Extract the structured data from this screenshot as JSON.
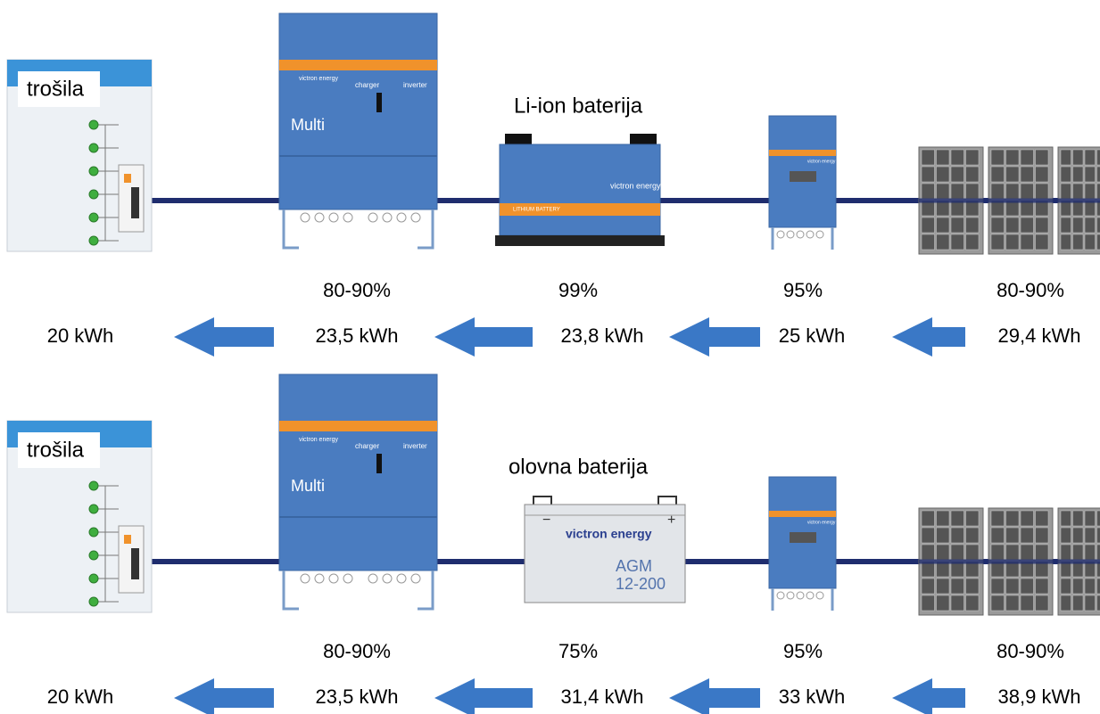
{
  "rows": [
    {
      "load_label": "trošila",
      "battery_label": "Li-ion baterija",
      "efficiencies": [
        "80-90%",
        "99%",
        "95%",
        "80-90%"
      ],
      "energies": [
        "20 kWh",
        "23,5 kWh",
        "23,8 kWh",
        "25 kWh",
        "29,4 kWh"
      ]
    },
    {
      "load_label": "trošila",
      "battery_label": "olovna baterija",
      "efficiencies": [
        "80-90%",
        "75%",
        "95%",
        "80-90%"
      ],
      "energies": [
        "20 kWh",
        "23,5 kWh",
        "31,4 kWh",
        "33 kWh",
        "38,9 kWh"
      ]
    }
  ],
  "devices": {
    "inverter": {
      "brand": "victron energy",
      "model": "Multi",
      "charger": "charger",
      "inverter": "inverter"
    },
    "lithium": {
      "brand": "victron energy",
      "label": "LITHIUM BATTERY"
    },
    "agm": {
      "brand": "victron energy",
      "model": "AGM",
      "spec": "12-200",
      "minus": "−",
      "plus": "+"
    },
    "controller": {
      "brand": "victron energy"
    }
  }
}
